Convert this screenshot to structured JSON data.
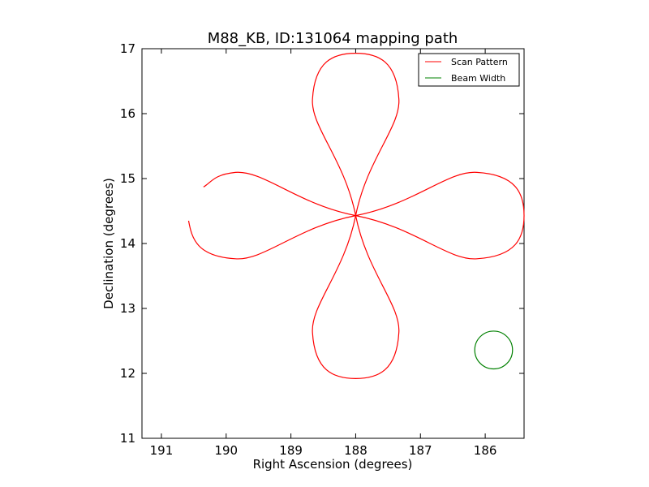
{
  "chart_data": {
    "type": "line",
    "title": "M88_KB, ID:131064 mapping path",
    "xlabel": "Right Ascension (degrees)",
    "ylabel": "Declination (degrees)",
    "xlim": [
      191.3,
      185.4
    ],
    "ylim": [
      11,
      17
    ],
    "x_inverted": true,
    "xticks": [
      191,
      190,
      189,
      188,
      187,
      186
    ],
    "yticks": [
      11,
      12,
      13,
      14,
      15,
      16,
      17
    ],
    "grid": false,
    "legend_position": "top-right",
    "series": [
      {
        "name": "Scan Pattern",
        "color": "#ff0000",
        "description_points": {
          "center": [
            188.0,
            14.43
          ],
          "lobes": [
            {
              "direction": "up",
              "tip": [
                188.0,
                16.93
              ]
            },
            {
              "direction": "right",
              "tip": [
                185.4,
                14.43
              ]
            },
            {
              "direction": "down",
              "tip": [
                188.0,
                11.92
              ]
            },
            {
              "direction": "left_partial",
              "end_points": [
                [
                  190.58,
                  14.35
                ],
                [
                  190.35,
                  14.87
                ]
              ]
            }
          ]
        }
      },
      {
        "name": "Beam Width",
        "color": "#008000",
        "circle": {
          "center": [
            185.87,
            12.36
          ],
          "radius": 0.36
        }
      }
    ]
  }
}
